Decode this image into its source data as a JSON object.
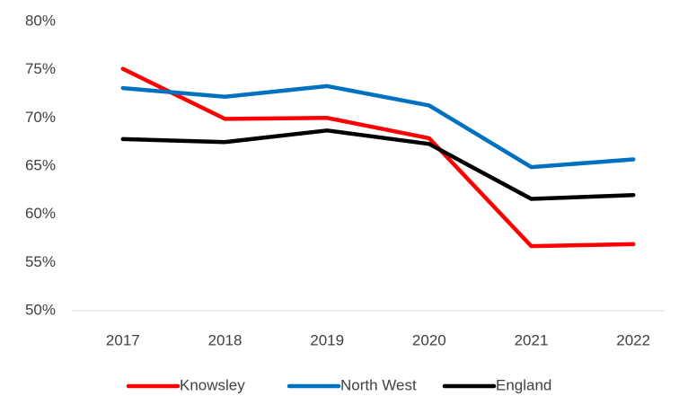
{
  "chart_data": {
    "type": "line",
    "categories": [
      "2017",
      "2018",
      "2019",
      "2020",
      "2021",
      "2022"
    ],
    "series": [
      {
        "name": "Knowsley",
        "color": "#ff0000",
        "values": [
          75.1,
          69.9,
          70.0,
          67.9,
          56.7,
          56.9
        ]
      },
      {
        "name": "North West",
        "color": "#0070c0",
        "values": [
          73.1,
          72.2,
          73.3,
          71.3,
          64.9,
          65.7
        ]
      },
      {
        "name": "England",
        "color": "#000000",
        "values": [
          67.8,
          67.5,
          68.7,
          67.3,
          61.6,
          62.0
        ]
      }
    ],
    "ylim": [
      50,
      80
    ],
    "yticks": [
      {
        "value": 50,
        "label": "50%"
      },
      {
        "value": 55,
        "label": "55%"
      },
      {
        "value": 60,
        "label": "60%"
      },
      {
        "value": 65,
        "label": "65%"
      },
      {
        "value": 70,
        "label": "70%"
      },
      {
        "value": 75,
        "label": "75%"
      },
      {
        "value": 80,
        "label": "80%"
      }
    ],
    "legend": "bottom"
  }
}
